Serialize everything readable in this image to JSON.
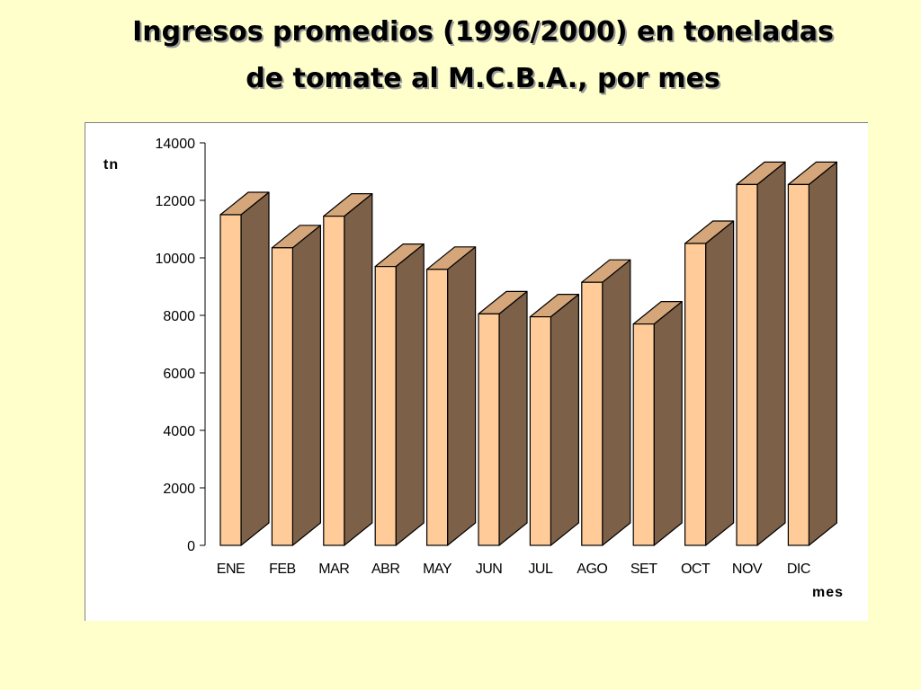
{
  "title_line1": "Ingresos promedios (1996/2000) en toneladas",
  "title_line2": "de tomate al M.C.B.A., por mes",
  "chart_data": {
    "type": "bar",
    "title": "Ingresos promedios (1996/2000) en toneladas de tomate al M.C.B.A., por mes",
    "xlabel": "mes",
    "ylabel": "tn",
    "categories": [
      "ENE",
      "FEB",
      "MAR",
      "ABR",
      "MAY",
      "JUN",
      "JUL",
      "AGO",
      "SET",
      "OCT",
      "NOV",
      "DIC"
    ],
    "values": [
      11500,
      10350,
      11450,
      9700,
      9600,
      8050,
      7950,
      9150,
      7700,
      10500,
      12550,
      12550
    ],
    "ylim": [
      0,
      14000
    ],
    "yticks": [
      0,
      2000,
      4000,
      6000,
      8000,
      10000,
      12000,
      14000
    ],
    "grid": false,
    "legend": "none",
    "colors": {
      "bar_front": "#ffcc99",
      "bar_top": "#d4a67a",
      "bar_side": "#7d6048",
      "outline": "#000000"
    }
  }
}
